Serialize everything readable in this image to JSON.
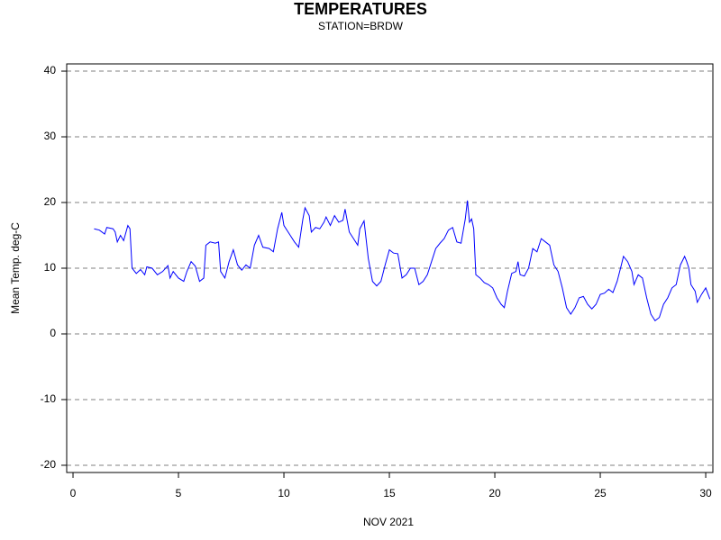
{
  "chart_data": {
    "type": "line",
    "title": "TEMPERATURES",
    "subtitle": "STATION=BRDW",
    "x_label": "NOV 2021",
    "y_label": "Mean Temp. deg-C",
    "xlim": [
      -0.3,
      30.34
    ],
    "xticks": [
      0,
      5,
      10,
      15,
      20,
      25,
      30
    ],
    "ylim": [
      -21.1,
      41.1
    ],
    "yticks": [
      -20,
      -10,
      0,
      10,
      20,
      30,
      40
    ],
    "grid": true,
    "series": [
      {
        "color": "#0000ff",
        "x": [
          1.0,
          1.25,
          1.5,
          1.6,
          1.9,
          2.0,
          2.1,
          2.25,
          2.4,
          2.6,
          2.7,
          2.8,
          3.0,
          3.2,
          3.4,
          3.5,
          3.75,
          4.0,
          4.25,
          4.5,
          4.6,
          4.75,
          5.0,
          5.25,
          5.4,
          5.6,
          5.8,
          6.0,
          6.2,
          6.3,
          6.5,
          6.75,
          6.9,
          7.0,
          7.2,
          7.4,
          7.6,
          7.8,
          8.0,
          8.2,
          8.4,
          8.6,
          8.8,
          9.0,
          9.3,
          9.5,
          9.7,
          9.9,
          10.0,
          10.3,
          10.5,
          10.7,
          10.9,
          11.0,
          11.2,
          11.3,
          11.5,
          11.7,
          11.9,
          12.0,
          12.2,
          12.4,
          12.6,
          12.8,
          12.9,
          13.1,
          13.3,
          13.5,
          13.6,
          13.8,
          14.0,
          14.2,
          14.4,
          14.6,
          14.8,
          15.0,
          15.2,
          15.4,
          15.6,
          15.8,
          16.0,
          16.2,
          16.4,
          16.6,
          16.8,
          17.0,
          17.2,
          17.4,
          17.6,
          17.8,
          18.0,
          18.2,
          18.4,
          18.6,
          18.7,
          18.8,
          18.9,
          19.0,
          19.1,
          19.3,
          19.5,
          19.7,
          19.9,
          20.1,
          20.3,
          20.45,
          20.6,
          20.8,
          21.0,
          21.1,
          21.2,
          21.4,
          21.6,
          21.8,
          22.0,
          22.2,
          22.4,
          22.6,
          22.8,
          23.0,
          23.2,
          23.4,
          23.6,
          23.8,
          24.0,
          24.2,
          24.4,
          24.6,
          24.8,
          25.0,
          25.2,
          25.4,
          25.6,
          25.8,
          26.0,
          26.1,
          26.3,
          26.5,
          26.6,
          26.8,
          27.0,
          27.2,
          27.4,
          27.6,
          27.8,
          28.0,
          28.2,
          28.4,
          28.6,
          28.8,
          29.0,
          29.1,
          29.2,
          29.3,
          29.5,
          29.6,
          29.8,
          30.0,
          30.2
        ],
        "values": [
          16.0,
          15.8,
          15.2,
          16.2,
          16.0,
          15.5,
          14.0,
          15.0,
          14.2,
          16.5,
          16.0,
          10.0,
          9.2,
          9.8,
          9.0,
          10.2,
          10.0,
          9.0,
          9.5,
          10.4,
          8.5,
          9.5,
          8.5,
          8.0,
          9.5,
          11.0,
          10.3,
          8.0,
          8.5,
          13.5,
          14.0,
          13.8,
          14.0,
          9.5,
          8.5,
          11.0,
          12.8,
          10.5,
          9.7,
          10.5,
          10.0,
          13.5,
          15.0,
          13.2,
          13.0,
          12.5,
          16.0,
          18.5,
          16.5,
          15.0,
          14.0,
          13.2,
          17.5,
          19.2,
          18.0,
          15.5,
          16.2,
          16.0,
          17.0,
          17.8,
          16.5,
          18.0,
          17.0,
          17.3,
          19.0,
          15.5,
          14.5,
          13.5,
          16.0,
          17.2,
          11.5,
          8.0,
          7.3,
          8.0,
          10.5,
          12.8,
          12.3,
          12.2,
          8.5,
          9.0,
          10.0,
          10.0,
          7.5,
          8.0,
          9.0,
          11.0,
          13.0,
          13.8,
          14.5,
          15.8,
          16.2,
          14.0,
          13.8,
          17.5,
          20.3,
          17.0,
          17.5,
          16.0,
          9.0,
          8.5,
          7.8,
          7.5,
          7.0,
          5.5,
          4.5,
          4.0,
          6.5,
          9.2,
          9.5,
          11.0,
          9.0,
          8.8,
          10.0,
          13.0,
          12.5,
          14.5,
          14.0,
          13.5,
          10.5,
          9.5,
          7.0,
          4.0,
          3.0,
          4.0,
          5.5,
          5.7,
          4.5,
          3.8,
          4.5,
          6.0,
          6.2,
          6.8,
          6.3,
          8.0,
          10.5,
          11.8,
          11.0,
          9.5,
          7.5,
          9.0,
          8.5,
          5.5,
          3.0,
          2.0,
          2.5,
          4.5,
          5.5,
          7.0,
          7.5,
          10.5,
          11.8,
          11.0,
          10.0,
          7.5,
          6.5,
          4.8,
          6.0,
          7.0,
          5.3
        ]
      }
    ]
  }
}
